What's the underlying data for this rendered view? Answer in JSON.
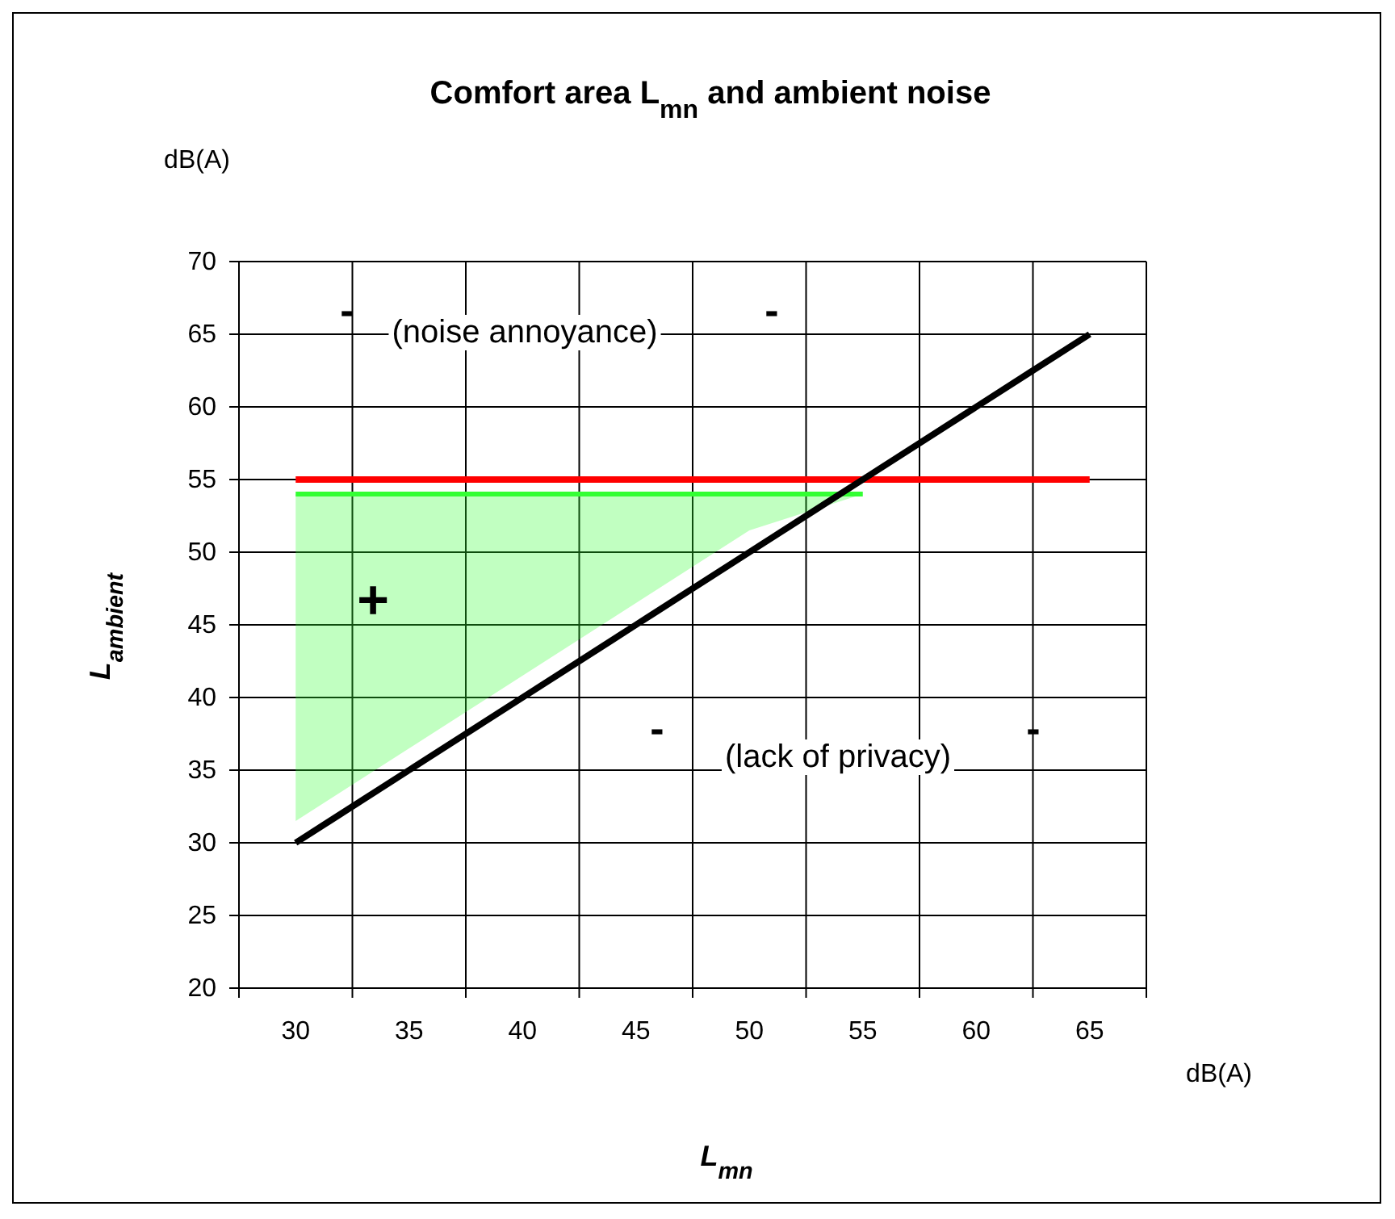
{
  "chart_data": {
    "type": "line",
    "title": "Comfort area L$_{mn}$ and ambient noise",
    "xlabel": "L$_{mn}$",
    "ylabel": "L$_{ambient}$",
    "categories": [
      "30",
      "35",
      "40",
      "45",
      "50",
      "55",
      "60",
      "65"
    ],
    "series": [
      {
        "color": "#33ff33",
        "values": [
          54,
          54,
          54,
          54,
          54,
          54,
          null,
          null
        ],
        "upper": [
          54,
          54,
          54,
          54,
          54,
          54,
          null,
          null
        ],
        "lower": [
          31.5,
          36.5,
          41.5,
          46.5,
          51.5,
          54,
          null,
          null
        ]
      },
      {
        "color": "#ff0000",
        "values": [
          55,
          55,
          55,
          55,
          55,
          55,
          55,
          55
        ]
      },
      {
        "color": "#000000",
        "values": [
          30,
          35,
          40,
          45,
          50,
          55,
          60,
          65
        ]
      }
    ],
    "ylim": [
      20,
      70
    ],
    "yticks": [
      20,
      25,
      30,
      35,
      40,
      45,
      50,
      55,
      60,
      65,
      70
    ],
    "grid": true,
    "marker": "none",
    "line_style": "solid",
    "annotations": [
      "dB(A)",
      "dB(A)",
      "-",
      "(noise annoyance)",
      "-",
      "+",
      "-",
      "(lack of privacy)",
      "-"
    ]
  }
}
